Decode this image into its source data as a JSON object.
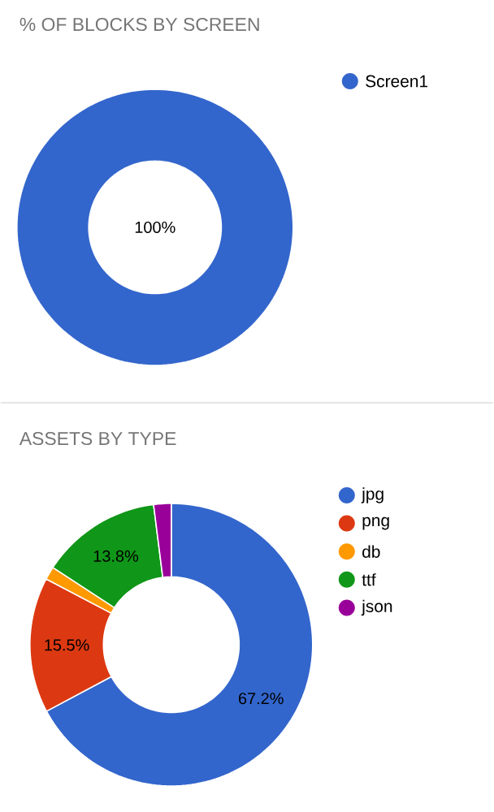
{
  "chart_data": [
    {
      "type": "donut",
      "title": "% OF BLOCKS BY SCREEN",
      "categories": [
        "Screen1"
      ],
      "values": [
        100
      ],
      "colors": [
        "#3366cc"
      ],
      "value_labels": [
        "100%"
      ],
      "legend": "top right"
    },
    {
      "type": "donut",
      "title": "ASSETS BY TYPE",
      "categories": [
        "jpg",
        "png",
        "db",
        "ttf",
        "json"
      ],
      "values": [
        67.2,
        15.5,
        1.5,
        13.8,
        2.0
      ],
      "colors": [
        "#3366cc",
        "#dc3912",
        "#ff9900",
        "#109618",
        "#990099"
      ],
      "value_labels": [
        "67.2%",
        "15.5%",
        null,
        "13.8%",
        null
      ],
      "legend": "top right"
    }
  ]
}
